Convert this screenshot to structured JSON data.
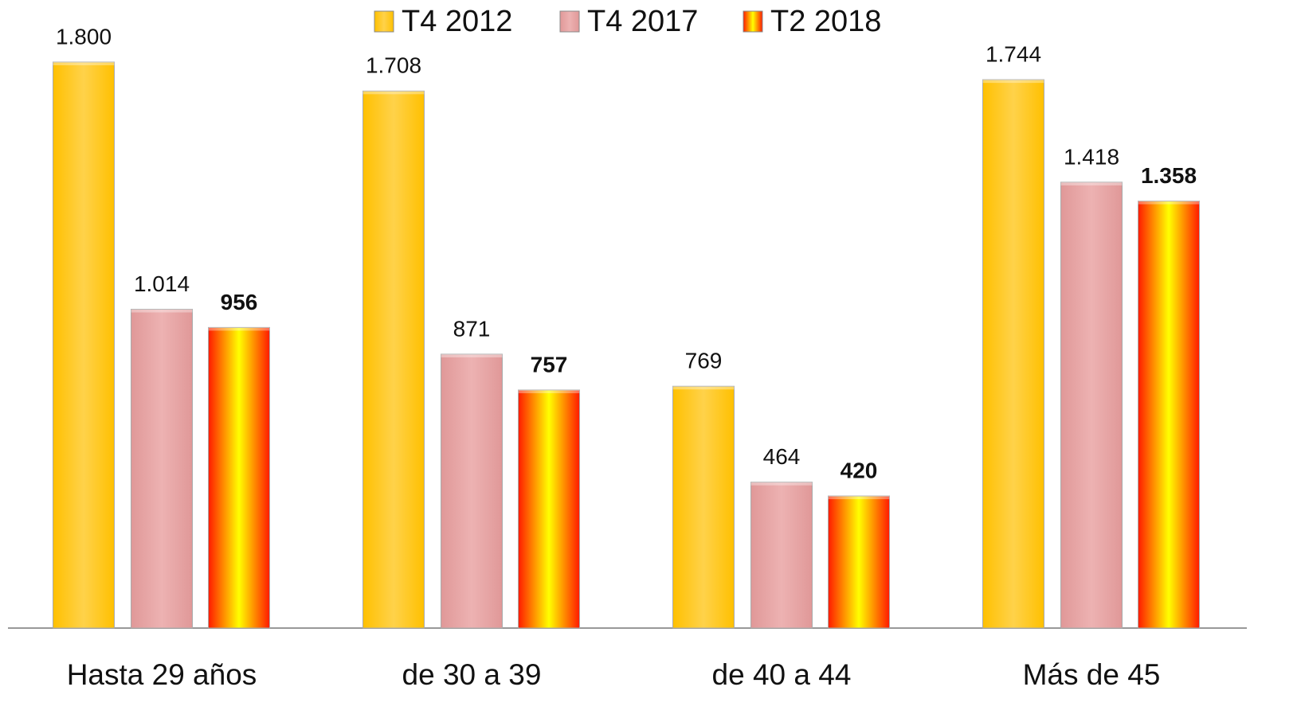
{
  "chart_data": {
    "type": "bar",
    "categories": [
      "Hasta 29 años",
      "de 30 a 39",
      "de 40 a 44",
      "Más de 45"
    ],
    "series": [
      {
        "name": "T4 2012",
        "color": "#FFC000",
        "values": [
          1800,
          1708,
          769,
          1744
        ],
        "value_labels": [
          "1.800",
          "1.708",
          "769",
          "1.744"
        ]
      },
      {
        "name": "T4 2017",
        "color": "#E09898",
        "values": [
          1014,
          871,
          464,
          1418
        ],
        "value_labels": [
          "1.014",
          "871",
          "464",
          "1.418"
        ]
      },
      {
        "name": "T2 2018",
        "color": "#FF1A00",
        "values": [
          956,
          757,
          420,
          1358
        ],
        "value_labels": [
          "956",
          "757",
          "420",
          "1.358"
        ]
      }
    ]
  }
}
